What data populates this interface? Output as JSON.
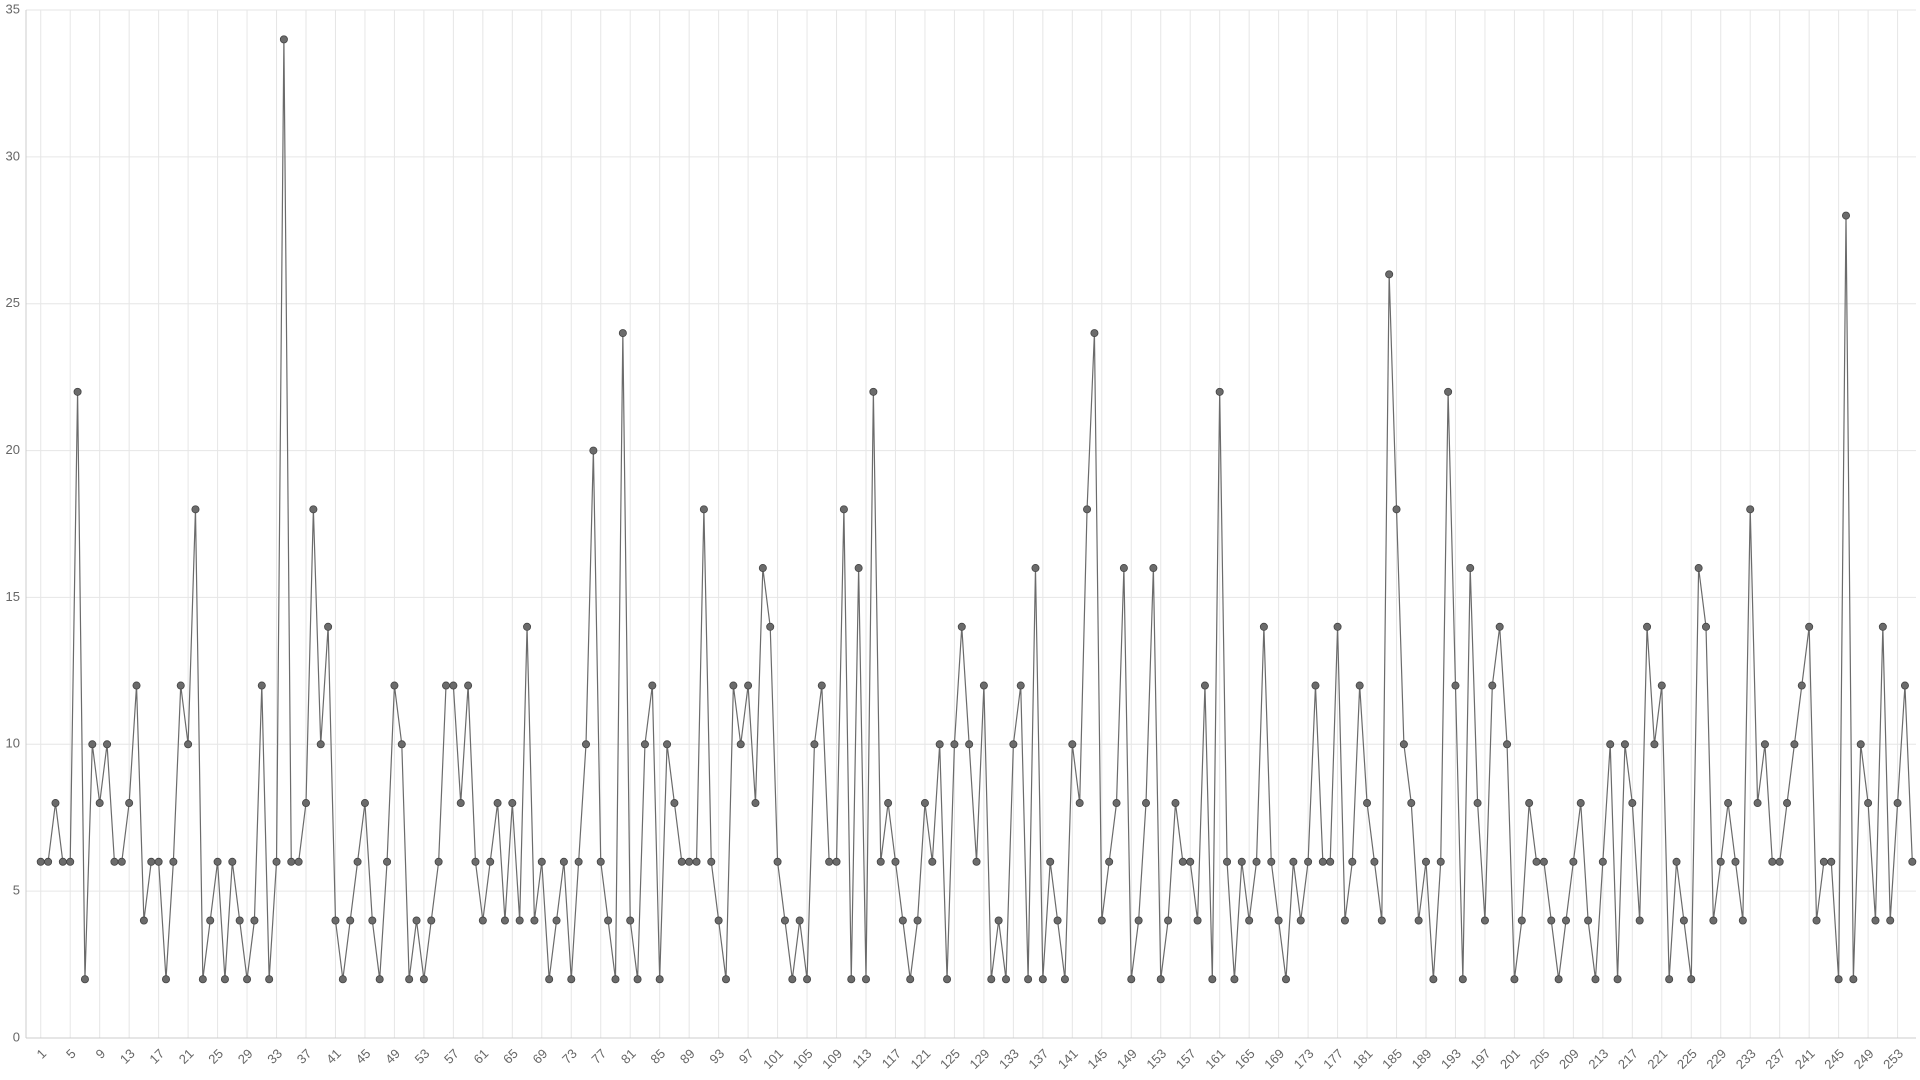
{
  "chart_data": {
    "type": "line",
    "x": [
      1,
      2,
      3,
      4,
      5,
      6,
      7,
      8,
      9,
      10,
      11,
      12,
      13,
      14,
      15,
      16,
      17,
      18,
      19,
      20,
      21,
      22,
      23,
      24,
      25,
      26,
      27,
      28,
      29,
      30,
      31,
      32,
      33,
      34,
      35,
      36,
      37,
      38,
      39,
      40,
      41,
      42,
      43,
      44,
      45,
      46,
      47,
      48,
      49,
      50,
      51,
      52,
      53,
      54,
      55,
      56,
      57,
      58,
      59,
      60,
      61,
      62,
      63,
      64,
      65,
      66,
      67,
      68,
      69,
      70,
      71,
      72,
      73,
      74,
      75,
      76,
      77,
      78,
      79,
      80,
      81,
      82,
      83,
      84,
      85,
      86,
      87,
      88,
      89,
      90,
      91,
      92,
      93,
      94,
      95,
      96,
      97,
      98,
      99,
      100,
      101,
      102,
      103,
      104,
      105,
      106,
      107,
      108,
      109,
      110,
      111,
      112,
      113,
      114,
      115,
      116,
      117,
      118,
      119,
      120,
      121,
      122,
      123,
      124,
      125,
      126,
      127,
      128,
      129,
      130,
      131,
      132,
      133,
      134,
      135,
      136,
      137,
      138,
      139,
      140,
      141,
      142,
      143,
      144,
      145,
      146,
      147,
      148,
      149,
      150,
      151,
      152,
      153,
      154,
      155,
      156,
      157,
      158,
      159,
      160,
      161,
      162,
      163,
      164,
      165,
      166,
      167,
      168,
      169,
      170,
      171,
      172,
      173,
      174,
      175,
      176,
      177,
      178,
      179,
      180,
      181,
      182,
      183,
      184,
      185,
      186,
      187,
      188,
      189,
      190,
      191,
      192,
      193,
      194,
      195,
      196,
      197,
      198,
      199,
      200,
      201,
      202,
      203,
      204,
      205,
      206,
      207,
      208,
      209,
      210,
      211,
      212,
      213,
      214,
      215,
      216,
      217,
      218,
      219,
      220,
      221,
      222,
      223,
      224,
      225,
      226,
      227,
      228,
      229,
      230,
      231,
      232,
      233,
      234,
      235,
      236,
      237,
      238,
      239,
      240,
      241,
      242,
      243,
      244,
      245,
      246,
      247,
      248,
      249,
      250,
      251,
      252,
      253,
      254,
      255
    ],
    "series": [
      {
        "color": "#6b6b6b",
        "values": [
          6,
          6,
          8,
          6,
          6,
          22,
          2,
          10,
          8,
          10,
          6,
          6,
          8,
          12,
          4,
          6,
          6,
          2,
          6,
          12,
          10,
          18,
          2,
          4,
          6,
          2,
          6,
          4,
          2,
          4,
          12,
          2,
          6,
          34,
          6,
          6,
          8,
          18,
          10,
          14,
          4,
          2,
          4,
          6,
          8,
          4,
          2,
          6,
          12,
          10,
          2,
          4,
          2,
          4,
          6,
          12,
          12,
          8,
          12,
          6,
          4,
          6,
          8,
          4,
          8,
          4,
          14,
          4,
          6,
          2,
          4,
          6,
          2,
          6,
          10,
          20,
          6,
          4,
          2,
          24,
          4,
          2,
          10,
          12,
          2,
          10,
          8,
          6,
          6,
          6,
          18,
          6,
          4,
          2,
          12,
          10,
          12,
          8,
          16,
          14,
          6,
          4,
          2,
          4,
          2,
          10,
          12,
          6,
          6,
          18,
          2,
          16,
          2,
          22,
          6,
          8,
          6,
          4,
          2,
          4,
          8,
          6,
          10,
          2,
          10,
          14,
          10,
          6,
          12,
          2,
          4,
          2,
          10,
          12,
          2,
          16,
          2,
          6,
          4,
          2,
          10,
          8,
          18,
          24,
          4,
          6,
          8,
          16,
          2,
          4,
          8,
          16,
          2,
          4,
          8,
          6,
          6,
          4,
          12,
          2,
          22,
          6,
          2,
          6,
          4,
          6,
          14,
          6,
          4,
          2,
          6,
          4,
          6,
          12,
          6,
          6,
          14,
          4,
          6,
          12,
          8,
          6,
          4,
          26,
          18,
          10,
          8,
          4,
          6,
          2,
          6,
          22,
          12,
          2,
          16,
          8,
          4,
          12,
          14,
          10,
          2,
          4,
          8,
          6,
          6,
          4,
          2,
          4,
          6,
          8,
          4,
          2,
          6,
          10,
          2,
          10,
          8,
          4,
          14,
          10,
          12,
          2,
          6,
          4,
          2,
          16,
          14,
          4,
          6,
          8,
          6,
          4,
          18,
          8,
          10,
          6,
          6,
          8,
          10,
          12,
          14,
          4,
          6,
          6,
          2,
          28,
          2,
          10,
          8,
          4,
          14,
          4,
          8,
          12,
          6
        ]
      }
    ],
    "xlim": [
      -1,
      255.5
    ],
    "xticks": [
      1,
      5,
      9,
      13,
      17,
      21,
      25,
      29,
      33,
      37,
      41,
      45,
      49,
      53,
      57,
      61,
      65,
      69,
      73,
      77,
      81,
      85,
      89,
      93,
      97,
      101,
      105,
      109,
      113,
      117,
      121,
      125,
      129,
      133,
      137,
      141,
      145,
      149,
      153,
      157,
      161,
      165,
      169,
      173,
      177,
      181,
      185,
      189,
      193,
      197,
      201,
      205,
      209,
      213,
      217,
      221,
      225,
      229,
      233,
      237,
      241,
      245,
      249,
      253
    ],
    "ylim": [
      0,
      35
    ],
    "yticks": [
      0,
      5,
      10,
      15,
      20,
      25,
      30,
      35
    ],
    "grid": true
  }
}
